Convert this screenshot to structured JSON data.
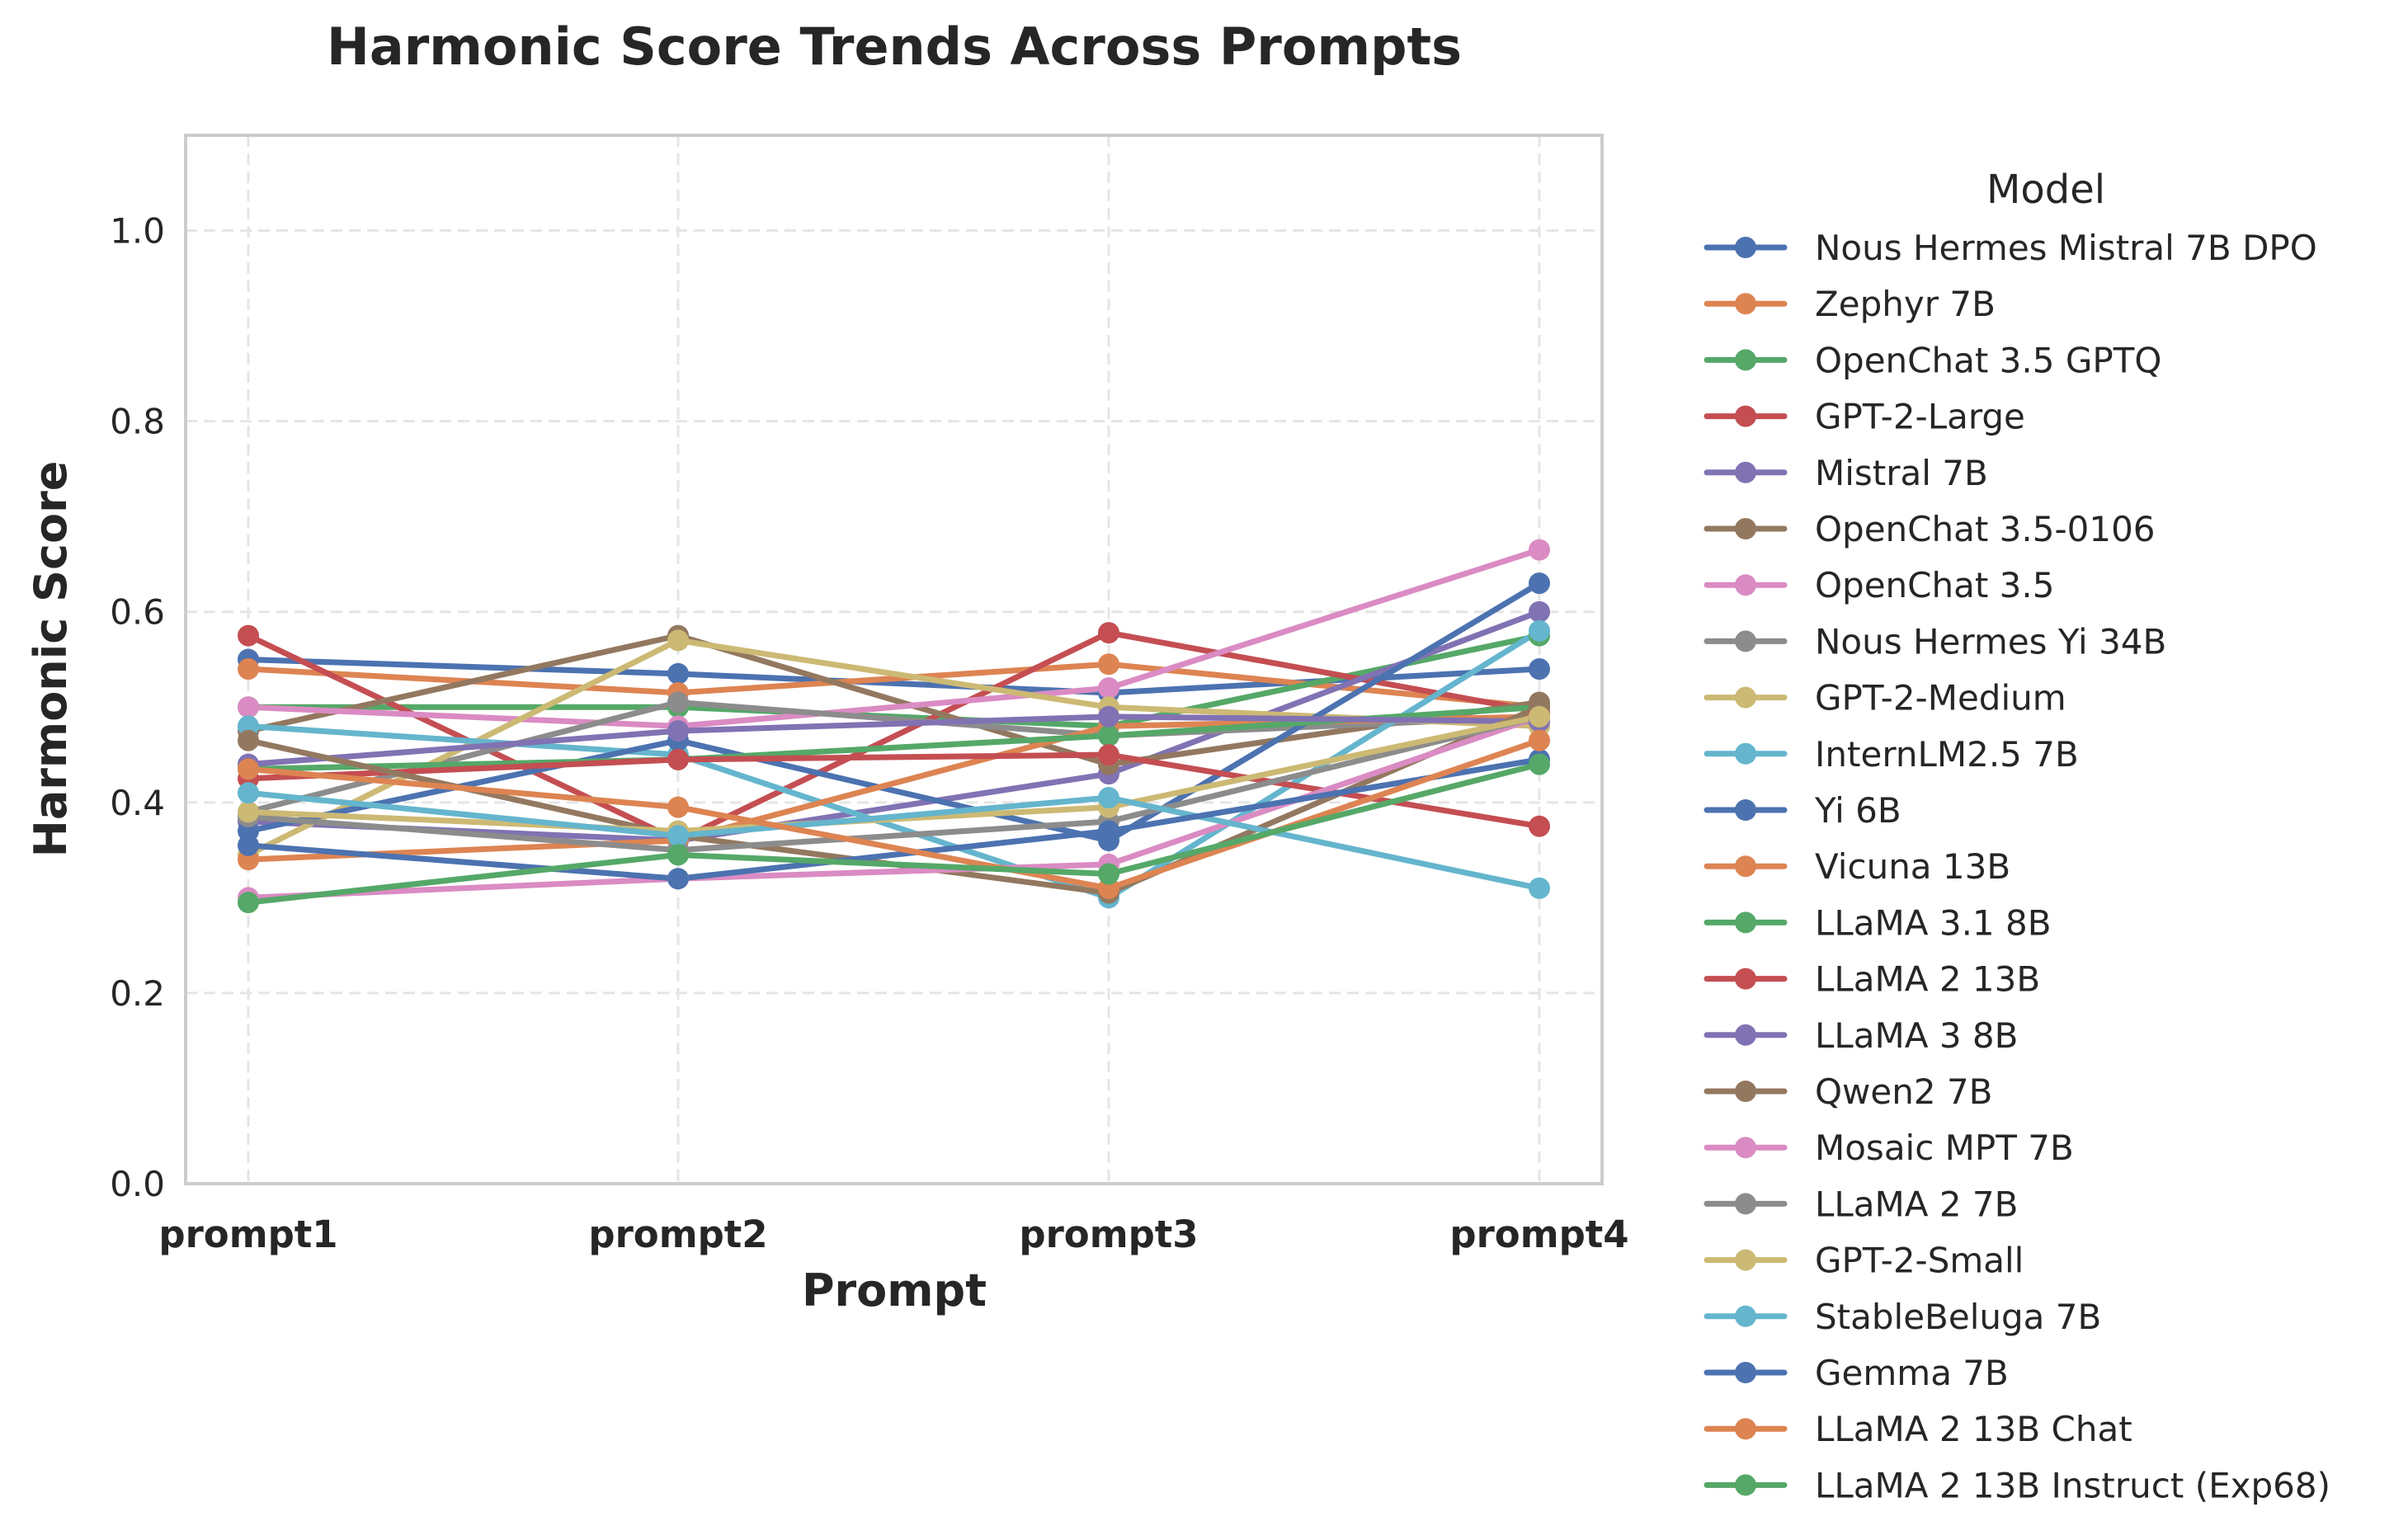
{
  "chart_data": {
    "type": "line",
    "title": "Harmonic Score Trends Across Prompts",
    "xlabel": "Prompt",
    "ylabel": "Harmonic Score",
    "categories": [
      "prompt1",
      "prompt2",
      "prompt3",
      "prompt4"
    ],
    "ylim": [
      0,
      1.1
    ],
    "yticks": [
      "0.0",
      "0.2",
      "0.4",
      "0.6",
      "0.8",
      "1.0"
    ],
    "grid": true,
    "legend_title": "Model",
    "legend_position": "right, outside",
    "series": [
      {
        "name": "Nous Hermes Mistral 7B DPO",
        "color": "#4c72b0",
        "values": [
          0.55,
          0.535,
          0.515,
          0.54
        ]
      },
      {
        "name": "Zephyr 7B",
        "color": "#dd8452",
        "values": [
          0.54,
          0.515,
          0.545,
          0.5
        ]
      },
      {
        "name": "OpenChat 3.5 GPTQ",
        "color": "#55a868",
        "values": [
          0.5,
          0.5,
          0.48,
          0.575
        ]
      },
      {
        "name": "GPT-2-Large",
        "color": "#c44e52",
        "values": [
          0.575,
          0.36,
          0.578,
          0.495
        ]
      },
      {
        "name": "Mistral 7B",
        "color": "#8172b3",
        "values": [
          0.38,
          0.36,
          0.43,
          0.6
        ]
      },
      {
        "name": "OpenChat 3.5-0106",
        "color": "#937860",
        "values": [
          0.475,
          0.575,
          0.44,
          0.505
        ]
      },
      {
        "name": "OpenChat 3.5",
        "color": "#da8bc3",
        "values": [
          0.5,
          0.48,
          0.52,
          0.665
        ]
      },
      {
        "name": "Nous Hermes Yi 34B",
        "color": "#8c8c8c",
        "values": [
          0.39,
          0.505,
          0.47,
          0.49
        ]
      },
      {
        "name": "GPT-2-Medium",
        "color": "#ccb974",
        "values": [
          0.345,
          0.57,
          0.5,
          0.48
        ]
      },
      {
        "name": "InternLM2.5 7B",
        "color": "#64b5cd",
        "values": [
          0.48,
          0.45,
          0.3,
          0.58
        ]
      },
      {
        "name": "Yi 6B",
        "color": "#4c72b0",
        "values": [
          0.37,
          0.465,
          0.36,
          0.63
        ]
      },
      {
        "name": "Vicuna 13B",
        "color": "#dd8452",
        "values": [
          0.34,
          0.36,
          0.48,
          0.49
        ]
      },
      {
        "name": "LLaMA 3.1 8B",
        "color": "#55a868",
        "values": [
          0.435,
          0.445,
          0.47,
          0.5
        ]
      },
      {
        "name": "LLaMA 2 13B",
        "color": "#c44e52",
        "values": [
          0.425,
          0.445,
          0.45,
          0.375
        ]
      },
      {
        "name": "LLaMA 3 8B",
        "color": "#8172b3",
        "values": [
          0.44,
          0.475,
          0.49,
          0.485
        ]
      },
      {
        "name": "Qwen2 7B",
        "color": "#937860",
        "values": [
          0.465,
          0.365,
          0.305,
          0.5
        ]
      },
      {
        "name": "Mosaic MPT 7B",
        "color": "#da8bc3",
        "values": [
          0.3,
          0.32,
          0.335,
          0.49
        ]
      },
      {
        "name": "LLaMA 2 7B",
        "color": "#8c8c8c",
        "values": [
          0.385,
          0.35,
          0.38,
          0.49
        ]
      },
      {
        "name": "GPT-2-Small",
        "color": "#ccb974",
        "values": [
          0.39,
          0.37,
          0.395,
          0.49
        ]
      },
      {
        "name": "StableBeluga 7B",
        "color": "#64b5cd",
        "values": [
          0.41,
          0.365,
          0.405,
          0.31
        ]
      },
      {
        "name": "Gemma 7B",
        "color": "#4c72b0",
        "values": [
          0.355,
          0.32,
          0.37,
          0.445
        ]
      },
      {
        "name": "LLaMA 2 13B Chat",
        "color": "#dd8452",
        "values": [
          0.435,
          0.395,
          0.31,
          0.465
        ]
      },
      {
        "name": "LLaMA 2 13B Instruct (Exp68)",
        "color": "#55a868",
        "values": [
          0.295,
          0.345,
          0.325,
          0.44
        ]
      }
    ]
  }
}
